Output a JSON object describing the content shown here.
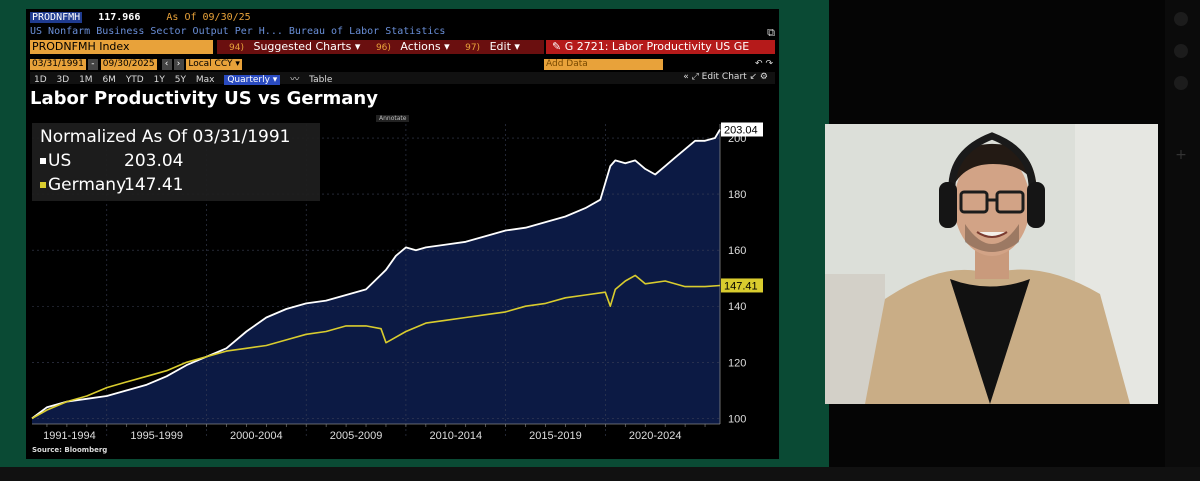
{
  "header": {
    "ticker": "PRODNFMH",
    "price": "117.966",
    "asof": "As Of 09/30/25",
    "description": "US Nonfarm Business Sector Output Per H...  Bureau of Labor Statistics",
    "security": "PRODNFMH Index",
    "menus": [
      {
        "num": "94)",
        "label": "Suggested Charts ▾"
      },
      {
        "num": "96)",
        "label": "Actions ▾"
      },
      {
        "num": "97)",
        "label": "Edit ▾"
      }
    ],
    "gtitle": "G 2721: Labor Productivity US GE",
    "start_date": "03/31/1991",
    "end_date": "09/30/2025",
    "currency": "Local CCY",
    "add_data": "Add Data",
    "periods": [
      "1D",
      "3D",
      "1M",
      "6M",
      "YTD",
      "1Y",
      "5Y",
      "Max"
    ],
    "frequency": "Quarterly ▾",
    "table_label": "Table",
    "edit_chart": "« ⤢ Edit Chart ↙ ⚙"
  },
  "legend": {
    "heading": "Normalized As Of 03/31/1991",
    "us_label": "US",
    "us_value": "203.04",
    "de_label": "Germany",
    "de_value": "147.41"
  },
  "annotate_label": "Annotate",
  "source": "Source: Bloomberg",
  "colors": {
    "us": "#ffffff",
    "germany": "#d9cc2e",
    "area": "#0c1a44",
    "accent": "#e8a23a",
    "frame": "#0a4a34"
  },
  "chart_data": {
    "type": "line",
    "title": "Labor Productivity US vs Germany",
    "subtitle": "Normalized As Of 03/31/1991",
    "ylim": [
      98,
      205
    ],
    "y_ticks": [
      100,
      120,
      140,
      160,
      180,
      200
    ],
    "x_ticks": [
      "1991-1994",
      "1995-1999",
      "2000-2004",
      "2005-2009",
      "2010-2014",
      "2015-2019",
      "2020-2024"
    ],
    "x_range": [
      1991.25,
      2025.75
    ],
    "grid": true,
    "legend_position": "top-left",
    "series": [
      {
        "name": "US",
        "last_value": "203.04",
        "area_fill": true,
        "x": [
          1991.25,
          1992,
          1993,
          1994,
          1995,
          1996,
          1997,
          1998,
          1999,
          2000,
          2001,
          2002,
          2003,
          2004,
          2005,
          2006,
          2007,
          2008,
          2009,
          2009.5,
          2010,
          2010.5,
          2011,
          2012,
          2013,
          2014,
          2015,
          2016,
          2017,
          2018,
          2019,
          2019.75,
          2020.25,
          2020.5,
          2021,
          2021.5,
          2022,
          2022.5,
          2023,
          2023.5,
          2024,
          2024.5,
          2025,
          2025.5,
          2025.75
        ],
        "values": [
          100,
          104,
          106,
          107,
          108,
          110,
          112,
          115,
          119,
          122,
          125,
          131,
          136,
          139,
          141,
          142,
          144,
          146,
          153,
          158,
          161,
          160,
          161,
          162,
          163,
          165,
          167,
          168,
          170,
          172,
          175,
          178,
          190,
          192,
          191,
          192,
          189,
          187,
          190,
          193,
          196,
          199,
          199,
          200,
          203.04
        ]
      },
      {
        "name": "Germany",
        "last_value": "147.41",
        "area_fill": false,
        "x": [
          1991.25,
          1992,
          1993,
          1994,
          1995,
          1996,
          1997,
          1998,
          1999,
          2000,
          2001,
          2002,
          2003,
          2004,
          2005,
          2006,
          2007,
          2008,
          2008.75,
          2009,
          2009.25,
          2010,
          2011,
          2012,
          2013,
          2014,
          2015,
          2016,
          2017,
          2018,
          2019,
          2020,
          2020.25,
          2020.5,
          2021,
          2021.5,
          2022,
          2023,
          2024,
          2025,
          2025.75
        ],
        "values": [
          100,
          103,
          106,
          108,
          111,
          113,
          115,
          117,
          120,
          122,
          124,
          125,
          126,
          128,
          130,
          131,
          133,
          133,
          132,
          127,
          128,
          131,
          134,
          135,
          136,
          137,
          138,
          140,
          141,
          143,
          144,
          145,
          140,
          146,
          149,
          151,
          148,
          149,
          147,
          147,
          147.41
        ]
      }
    ]
  }
}
